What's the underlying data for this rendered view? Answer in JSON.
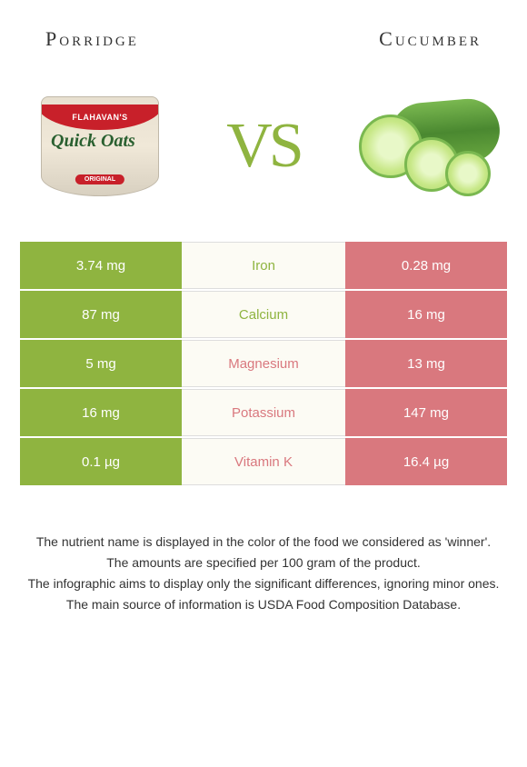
{
  "foods": {
    "left": {
      "title": "Porridge",
      "color": "#8fb440",
      "image_brand": "FLAHAVAN'S",
      "image_product": "Quick Oats",
      "image_variant": "ORIGINAL"
    },
    "right": {
      "title": "Cucumber",
      "color": "#d9787e"
    }
  },
  "vs_text": "VS",
  "vs_color": "#8fb440",
  "nutrients": [
    {
      "name": "Iron",
      "left": "3.74 mg",
      "right": "0.28 mg",
      "winner": "left"
    },
    {
      "name": "Calcium",
      "left": "87 mg",
      "right": "16 mg",
      "winner": "left"
    },
    {
      "name": "Magnesium",
      "left": "5 mg",
      "right": "13 mg",
      "winner": "right"
    },
    {
      "name": "Potassium",
      "left": "16 mg",
      "right": "147 mg",
      "winner": "right"
    },
    {
      "name": "Vitamin K",
      "left": "0.1 µg",
      "right": "16.4 µg",
      "winner": "right"
    }
  ],
  "row_background": "#fcfbf4",
  "footer": {
    "line1": "The nutrient name is displayed in the color of the food we considered as 'winner'.",
    "line2": "The amounts are specified per 100 gram of the product.",
    "line3": "The infographic aims to display only the significant differences, ignoring minor ones.",
    "line4": "The main source of information is USDA Food Composition Database."
  }
}
